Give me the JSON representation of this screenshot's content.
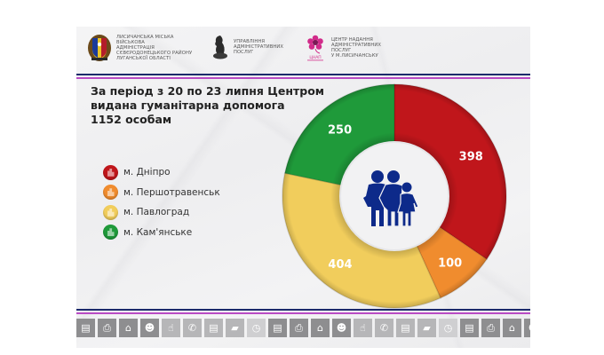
{
  "header": {
    "orgs": [
      {
        "name": "Лисичанська міська військова адміністрація Сєвєродонецького району Луганської області",
        "lines": "ЛИСИЧАНСЬКА МІСЬКА\nВІЙСЬКОВА\nАДМІНІСТРАЦІЯ\nСЄВЄРОДОНЕЦЬКОГО РАЙОНУ\nЛУГАНСЬКОЇ ОБЛАСТІ",
        "logo": "coat-of-arms-icon"
      },
      {
        "name": "Управління адміністративних послуг",
        "lines": "УПРАВЛІННЯ\nАДМІНІСТРАТИВНИХ\nПОСЛУГ",
        "logo": "horse-statue-icon"
      },
      {
        "name": "Центр надання адміністративних послуг у м.Лисичанську",
        "lines": "ЦЕНТР НАДАННЯ\nАДМІНІСТРАТИВНИХ\nПОСЛУГ\nУ М.ЛИСИЧАНСЬКУ",
        "logo": "cnap-flower-icon",
        "logo_caption": "ЦНАП"
      }
    ]
  },
  "title": {
    "line1": "За період з 20 по 23 липня Центром",
    "line2": "видана гуманітарна допомога",
    "line3": "1152 особам"
  },
  "legend": [
    {
      "label": "м. Дніпро",
      "color": "#c0161b"
    },
    {
      "label": "м. Першотравенськ",
      "color": "#f08c2e"
    },
    {
      "label": "м. Павлоград",
      "color": "#f1cd5c"
    },
    {
      "label": "м. Кам'янське",
      "color": "#1f9a3a"
    }
  ],
  "center_icon": "family-icon",
  "colors": {
    "navy": "#1b2a6b",
    "pink": "#b94bc4",
    "family": "#0d2a8a"
  },
  "chart_data": {
    "type": "pie",
    "variant": "donut",
    "title": "За період з 20 по 23 липня Центром видана гуманітарна допомога 1152 особам",
    "total": 1152,
    "categories": [
      "м. Дніпро",
      "м. Першотравенськ",
      "м. Павлоград",
      "м. Кам'янське"
    ],
    "values": [
      398,
      100,
      404,
      250
    ],
    "colors": [
      "#c0161b",
      "#f08c2e",
      "#f1cd5c",
      "#1f9a3a"
    ],
    "value_labels": [
      "398",
      "100",
      "404",
      "250"
    ],
    "legend_position": "left",
    "start_angle": "top, clockwise"
  },
  "footer_icons": [
    "document-icon",
    "printer-icon",
    "bank-icon",
    "user-badge-icon",
    "touch-icon",
    "viber-icon",
    "document-icon",
    "folder-icon",
    "clock-icon",
    "document-icon",
    "printer-icon",
    "bank-icon",
    "user-badge-icon",
    "touch-icon",
    "viber-icon",
    "document-icon",
    "folder-icon",
    "clock-icon",
    "document-icon",
    "printer-icon",
    "bank-icon",
    "user-badge-icon",
    "touch-icon",
    "viber-icon",
    "document-icon",
    "folder-icon",
    "clock-icon"
  ]
}
